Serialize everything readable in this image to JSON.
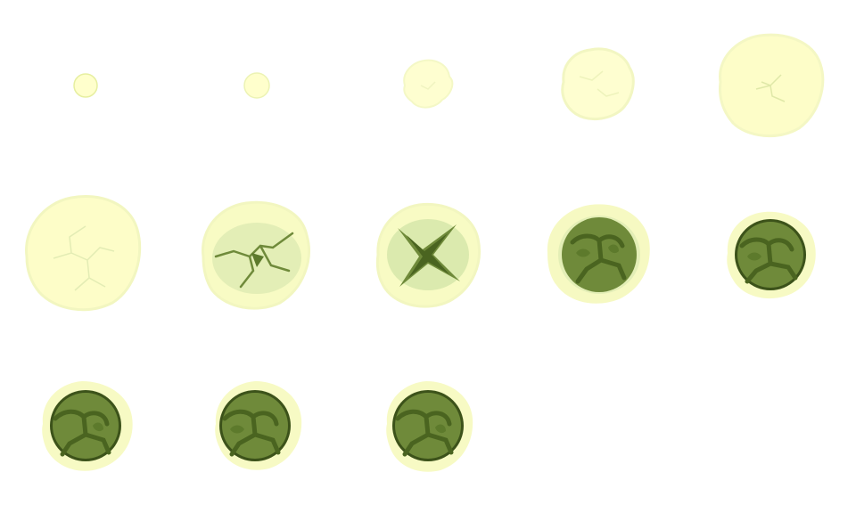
{
  "sprite_sheet": {
    "columns": 5,
    "rows": 3,
    "frame_count": 13,
    "palette": {
      "pale": "#ffffcc",
      "pale_outline": "#e6efa0",
      "glow": "#f3f7c2",
      "crack_light": "#c9dca0",
      "leaf_light": "#dfeeb6",
      "moss": "#6f8a3a",
      "moss_dark": "#4a6420",
      "moss_deep": "#3c521a",
      "moss_mid": "#5d7a2c"
    },
    "frames": [
      {
        "id": 1,
        "stage": "tiny-orb"
      },
      {
        "id": 2,
        "stage": "tiny-orb"
      },
      {
        "id": 3,
        "stage": "soft-bloom"
      },
      {
        "id": 4,
        "stage": "soft-bloom"
      },
      {
        "id": 5,
        "stage": "cracking-bloom"
      },
      {
        "id": 6,
        "stage": "cracking-bloom"
      },
      {
        "id": 7,
        "stage": "fissure"
      },
      {
        "id": 8,
        "stage": "x-fissure"
      },
      {
        "id": 9,
        "stage": "moss-orb-forming"
      },
      {
        "id": 10,
        "stage": "moss-orb"
      },
      {
        "id": 11,
        "stage": "moss-orb"
      },
      {
        "id": 12,
        "stage": "moss-orb"
      },
      {
        "id": 13,
        "stage": "moss-orb"
      }
    ]
  }
}
